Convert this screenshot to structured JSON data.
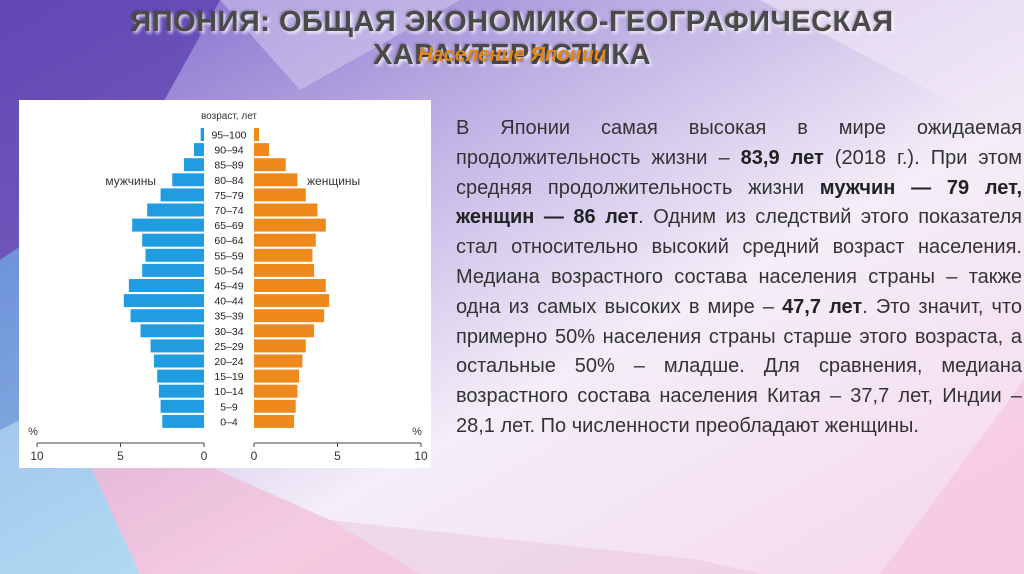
{
  "slide": {
    "title": "ЯПОНИЯ: ОБЩАЯ ЭКОНОМИКО-ГЕОГРАФИЧЕСКАЯ ХАРАКТЕРИСТИКА",
    "subtitle": "Население Японии"
  },
  "text": {
    "p1": "В Японии самая высокая в мире ожидаемая продолжительность жизни – ",
    "p2": "83,9 лет",
    "p3": " (2018 г.). При этом средняя продолжительность жизни ",
    "p4": "мужчин — 79 лет",
    "p5": ", ",
    "p6": "женщин — 86 лет",
    "p7": ". Одним из следствий этого показателя стал относительно высокий средний возраст населения. Медиана возрастного состава населения страны –  также одна из самых высоких в мире – ",
    "p8": "47,7 лет",
    "p9": ". Это значит, что примерно 50% населения страны старше этого возраста, а остальные 50% – младше. Для сравнения, медиана возрастного состава населения Китая – 37,7 лет, Индии – 28,1 лет. По численности преобладают женщины."
  },
  "colors": {
    "men": "#1f9de0",
    "women": "#ee8a1c",
    "accent": "#e8850f"
  },
  "chart_data": {
    "type": "bar",
    "orientation": "horizontal",
    "layout": "population-pyramid",
    "yaxis_title": "возраст, лет",
    "xaxis_unit": "%",
    "xlim": [
      0,
      10
    ],
    "xticks": [
      "10",
      "5",
      "0",
      "5",
      "10"
    ],
    "categories": [
      "95–100",
      "90–94",
      "85–89",
      "80–84",
      "75–79",
      "70–74",
      "65–69",
      "60–64",
      "55–59",
      "50–54",
      "45–49",
      "40–44",
      "35–39",
      "30–34",
      "25–29",
      "20–24",
      "15–19",
      "10–14",
      "5–9",
      "0–4"
    ],
    "series": [
      {
        "name": "мужчины",
        "side": "left",
        "values": [
          0.2,
          0.6,
          1.2,
          1.9,
          2.6,
          3.4,
          4.3,
          3.7,
          3.5,
          3.7,
          4.5,
          4.8,
          4.4,
          3.8,
          3.2,
          3.0,
          2.8,
          2.7,
          2.6,
          2.5
        ]
      },
      {
        "name": "женщины",
        "side": "right",
        "values": [
          0.3,
          0.9,
          1.9,
          2.6,
          3.1,
          3.8,
          4.3,
          3.7,
          3.5,
          3.6,
          4.3,
          4.5,
          4.2,
          3.6,
          3.1,
          2.9,
          2.7,
          2.6,
          2.5,
          2.4
        ]
      }
    ]
  }
}
